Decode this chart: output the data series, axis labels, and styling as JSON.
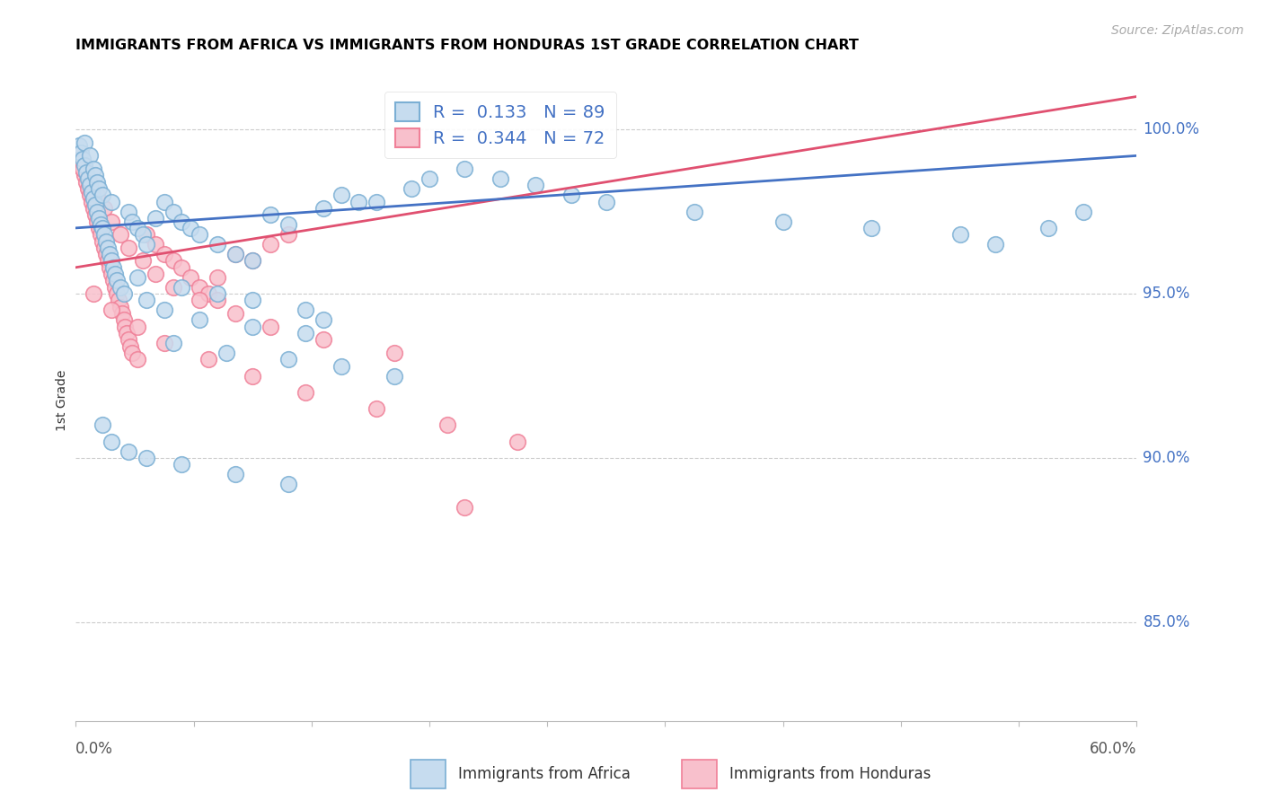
{
  "title": "IMMIGRANTS FROM AFRICA VS IMMIGRANTS FROM HONDURAS 1ST GRADE CORRELATION CHART",
  "source": "Source: ZipAtlas.com",
  "ylabel": "1st Grade",
  "right_yticks": [
    85.0,
    90.0,
    95.0,
    100.0
  ],
  "xlim": [
    0.0,
    60.0
  ],
  "ylim": [
    82.0,
    101.5
  ],
  "africa_color_edge": "#7bafd4",
  "africa_color_fill": "#c6dcef",
  "honduras_color_edge": "#f08098",
  "honduras_color_fill": "#f8c0cc",
  "trend_africa_color": "#4472c4",
  "trend_honduras_color": "#e05070",
  "legend_text_color": "#4472c4",
  "R_africa": 0.133,
  "N_africa": 89,
  "R_honduras": 0.344,
  "N_honduras": 72,
  "africa_trend_x0": 0.0,
  "africa_trend_y0": 97.0,
  "africa_trend_x1": 60.0,
  "africa_trend_y1": 99.2,
  "honduras_trend_x0": 0.0,
  "honduras_trend_y0": 95.8,
  "honduras_trend_x1": 60.0,
  "honduras_trend_y1": 101.0,
  "africa_x": [
    0.2,
    0.3,
    0.4,
    0.5,
    0.5,
    0.6,
    0.7,
    0.8,
    0.8,
    0.9,
    1.0,
    1.0,
    1.1,
    1.1,
    1.2,
    1.2,
    1.3,
    1.3,
    1.4,
    1.5,
    1.5,
    1.6,
    1.7,
    1.8,
    1.9,
    2.0,
    2.0,
    2.1,
    2.2,
    2.3,
    2.5,
    2.7,
    3.0,
    3.2,
    3.5,
    3.8,
    4.0,
    4.5,
    5.0,
    5.5,
    6.0,
    6.5,
    7.0,
    8.0,
    9.0,
    10.0,
    11.0,
    12.0,
    14.0,
    16.0,
    4.0,
    5.0,
    7.0,
    10.0,
    13.0,
    5.5,
    8.5,
    12.0,
    15.0,
    18.0,
    3.5,
    6.0,
    8.0,
    10.0,
    13.0,
    14.0,
    15.0,
    17.0,
    19.0,
    20.0,
    22.0,
    24.0,
    26.0,
    28.0,
    30.0,
    35.0,
    40.0,
    45.0,
    50.0,
    52.0,
    55.0,
    57.0,
    1.5,
    2.0,
    3.0,
    4.0,
    6.0,
    9.0,
    12.0
  ],
  "africa_y": [
    99.5,
    99.3,
    99.1,
    98.9,
    99.6,
    98.7,
    98.5,
    98.3,
    99.2,
    98.1,
    97.9,
    98.8,
    97.7,
    98.6,
    97.5,
    98.4,
    97.3,
    98.2,
    97.1,
    97.0,
    98.0,
    96.8,
    96.6,
    96.4,
    96.2,
    96.0,
    97.8,
    95.8,
    95.6,
    95.4,
    95.2,
    95.0,
    97.5,
    97.2,
    97.0,
    96.8,
    96.5,
    97.3,
    97.8,
    97.5,
    97.2,
    97.0,
    96.8,
    96.5,
    96.2,
    96.0,
    97.4,
    97.1,
    97.6,
    97.8,
    94.8,
    94.5,
    94.2,
    94.0,
    93.8,
    93.5,
    93.2,
    93.0,
    92.8,
    92.5,
    95.5,
    95.2,
    95.0,
    94.8,
    94.5,
    94.2,
    98.0,
    97.8,
    98.2,
    98.5,
    98.8,
    98.5,
    98.3,
    98.0,
    97.8,
    97.5,
    97.2,
    97.0,
    96.8,
    96.5,
    97.0,
    97.5,
    91.0,
    90.5,
    90.2,
    90.0,
    89.8,
    89.5,
    89.2
  ],
  "honduras_x": [
    0.2,
    0.3,
    0.4,
    0.5,
    0.6,
    0.7,
    0.8,
    0.9,
    1.0,
    1.1,
    1.2,
    1.3,
    1.4,
    1.5,
    1.6,
    1.7,
    1.8,
    1.9,
    2.0,
    2.1,
    2.2,
    2.3,
    2.4,
    2.5,
    2.6,
    2.7,
    2.8,
    2.9,
    3.0,
    3.1,
    3.2,
    3.5,
    4.0,
    4.5,
    5.0,
    5.5,
    6.0,
    6.5,
    7.0,
    7.5,
    8.0,
    9.0,
    10.0,
    11.0,
    12.0,
    0.4,
    0.8,
    1.2,
    1.6,
    2.0,
    2.5,
    3.0,
    3.8,
    4.5,
    5.5,
    7.0,
    9.0,
    11.0,
    14.0,
    18.0,
    1.0,
    2.0,
    3.5,
    5.0,
    7.5,
    10.0,
    13.0,
    17.0,
    21.0,
    25.0,
    22.0,
    8.0
  ],
  "honduras_y": [
    99.2,
    99.0,
    98.8,
    98.6,
    98.4,
    98.2,
    98.0,
    97.8,
    97.6,
    97.4,
    97.2,
    97.0,
    96.8,
    96.6,
    96.4,
    96.2,
    96.0,
    95.8,
    95.6,
    95.4,
    95.2,
    95.0,
    94.8,
    94.6,
    94.4,
    94.2,
    94.0,
    93.8,
    93.6,
    93.4,
    93.2,
    93.0,
    96.8,
    96.5,
    96.2,
    96.0,
    95.8,
    95.5,
    95.2,
    95.0,
    94.8,
    96.2,
    96.0,
    96.5,
    96.8,
    98.8,
    98.4,
    98.0,
    97.6,
    97.2,
    96.8,
    96.4,
    96.0,
    95.6,
    95.2,
    94.8,
    94.4,
    94.0,
    93.6,
    93.2,
    95.0,
    94.5,
    94.0,
    93.5,
    93.0,
    92.5,
    92.0,
    91.5,
    91.0,
    90.5,
    88.5,
    95.5
  ]
}
